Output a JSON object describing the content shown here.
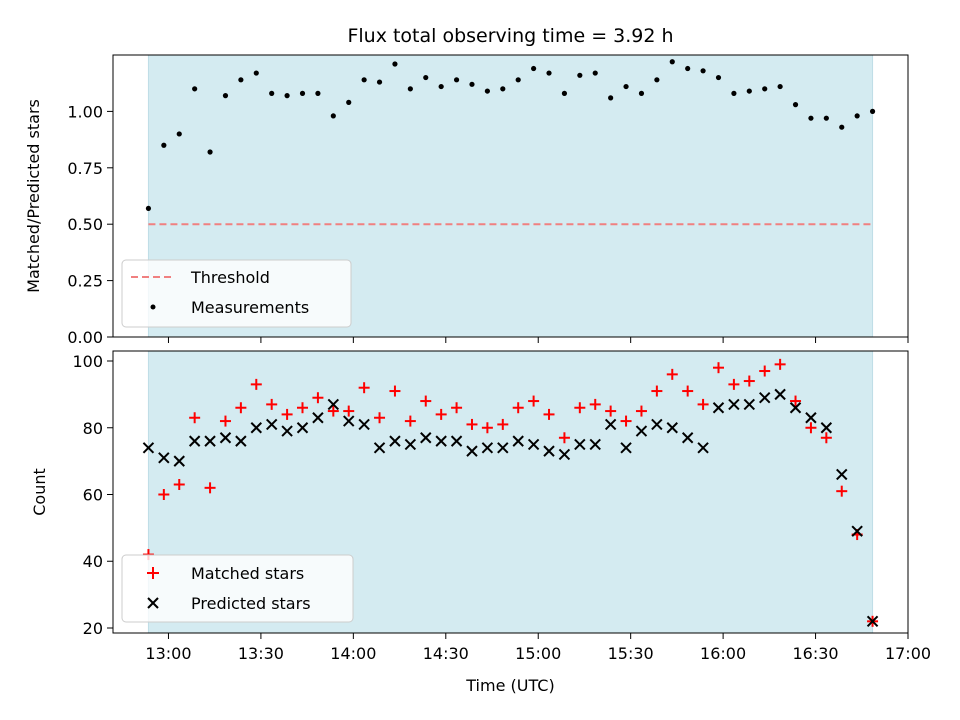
{
  "chart_data": {
    "type": "scatter",
    "title": "Flux total observing time = 3.92 h",
    "xlabel": "Time (UTC)",
    "x_tick_labels": [
      "13:00",
      "13:30",
      "14:00",
      "14:30",
      "15:00",
      "15:30",
      "16:00",
      "16:30",
      "17:00"
    ],
    "x_ticks_minutes": [
      780,
      810,
      840,
      870,
      900,
      930,
      960,
      990,
      1020
    ],
    "xlim_minutes": [
      762,
      1020
    ],
    "observing_window_minutes": [
      773.5,
      1008.5
    ],
    "shade_color": "#d4ebf1",
    "panels": [
      {
        "name": "ratio",
        "ylabel": "Matched/Predicted stars",
        "ylim": [
          0.0,
          1.25
        ],
        "y_ticks": [
          0.0,
          0.25,
          0.5,
          0.75,
          1.0
        ],
        "y_tick_labels": [
          "0.00",
          "0.25",
          "0.50",
          "0.75",
          "1.00"
        ],
        "threshold": {
          "name": "Threshold",
          "value": 0.5,
          "color": "#f08080"
        },
        "legend": [
          "Threshold",
          "Measurements"
        ],
        "series": [
          {
            "name": "Measurements",
            "marker": "dot",
            "color": "#000000",
            "x": [
              773.5,
              778.5,
              783.5,
              788.5,
              793.5,
              798.5,
              803.5,
              808.5,
              813.5,
              818.5,
              823.5,
              828.5,
              833.5,
              838.5,
              843.5,
              848.5,
              853.5,
              858.5,
              863.5,
              868.5,
              873.5,
              878.5,
              883.5,
              888.5,
              893.5,
              898.5,
              903.5,
              908.5,
              913.5,
              918.5,
              923.5,
              928.5,
              933.5,
              938.5,
              943.5,
              948.5,
              953.5,
              958.5,
              963.5,
              968.5,
              973.5,
              978.5,
              983.5,
              988.5,
              993.5,
              998.5,
              1003.5,
              1008.5
            ],
            "y": [
              0.57,
              0.85,
              0.9,
              1.1,
              0.82,
              1.07,
              1.14,
              1.17,
              1.08,
              1.07,
              1.08,
              1.08,
              0.98,
              1.04,
              1.14,
              1.13,
              1.21,
              1.1,
              1.15,
              1.11,
              1.14,
              1.12,
              1.09,
              1.1,
              1.14,
              1.19,
              1.17,
              1.08,
              1.16,
              1.17,
              1.06,
              1.11,
              1.08,
              1.14,
              1.22,
              1.19,
              1.18,
              1.15,
              1.08,
              1.09,
              1.1,
              1.11,
              1.03,
              0.97,
              0.97,
              0.93,
              0.98,
              1.0
            ]
          }
        ]
      },
      {
        "name": "counts",
        "ylabel": "Count",
        "ylim": [
          18.5,
          103
        ],
        "y_ticks": [
          20,
          40,
          60,
          80,
          100
        ],
        "y_tick_labels": [
          "20",
          "40",
          "60",
          "80",
          "100"
        ],
        "legend": [
          "Matched stars",
          "Predicted stars"
        ],
        "series": [
          {
            "name": "Matched stars",
            "marker": "plus",
            "color": "#ff0000",
            "x": [
              773.5,
              778.5,
              783.5,
              788.5,
              793.5,
              798.5,
              803.5,
              808.5,
              813.5,
              818.5,
              823.5,
              828.5,
              833.5,
              838.5,
              843.5,
              848.5,
              853.5,
              858.5,
              863.5,
              868.5,
              873.5,
              878.5,
              883.5,
              888.5,
              893.5,
              898.5,
              903.5,
              908.5,
              913.5,
              918.5,
              923.5,
              928.5,
              933.5,
              938.5,
              943.5,
              948.5,
              953.5,
              958.5,
              963.5,
              968.5,
              973.5,
              978.5,
              983.5,
              988.5,
              993.5,
              998.5,
              1003.5,
              1008.5
            ],
            "y": [
              42,
              60,
              63,
              83,
              62,
              82,
              86,
              93,
              87,
              84,
              86,
              89,
              85,
              85,
              92,
              83,
              91,
              82,
              88,
              84,
              86,
              81,
              80,
              81,
              86,
              88,
              84,
              77,
              86,
              87,
              85,
              82,
              85,
              91,
              96,
              91,
              87,
              98,
              93,
              94,
              97,
              99,
              88,
              80,
              77,
              61,
              48,
              22
            ]
          },
          {
            "name": "Predicted stars",
            "marker": "x",
            "color": "#000000",
            "x": [
              773.5,
              778.5,
              783.5,
              788.5,
              793.5,
              798.5,
              803.5,
              808.5,
              813.5,
              818.5,
              823.5,
              828.5,
              833.5,
              838.5,
              843.5,
              848.5,
              853.5,
              858.5,
              863.5,
              868.5,
              873.5,
              878.5,
              883.5,
              888.5,
              893.5,
              898.5,
              903.5,
              908.5,
              913.5,
              918.5,
              923.5,
              928.5,
              933.5,
              938.5,
              943.5,
              948.5,
              953.5,
              958.5,
              963.5,
              968.5,
              973.5,
              978.5,
              983.5,
              988.5,
              993.5,
              998.5,
              1003.5,
              1008.5
            ],
            "y": [
              74,
              71,
              70,
              76,
              76,
              77,
              76,
              80,
              81,
              79,
              80,
              83,
              87,
              82,
              81,
              74,
              76,
              75,
              77,
              76,
              76,
              73,
              74,
              74,
              76,
              75,
              73,
              72,
              75,
              75,
              81,
              74,
              79,
              81,
              80,
              77,
              74,
              86,
              87,
              87,
              89,
              90,
              86,
              83,
              80,
              66,
              49,
              22
            ]
          }
        ]
      }
    ]
  }
}
